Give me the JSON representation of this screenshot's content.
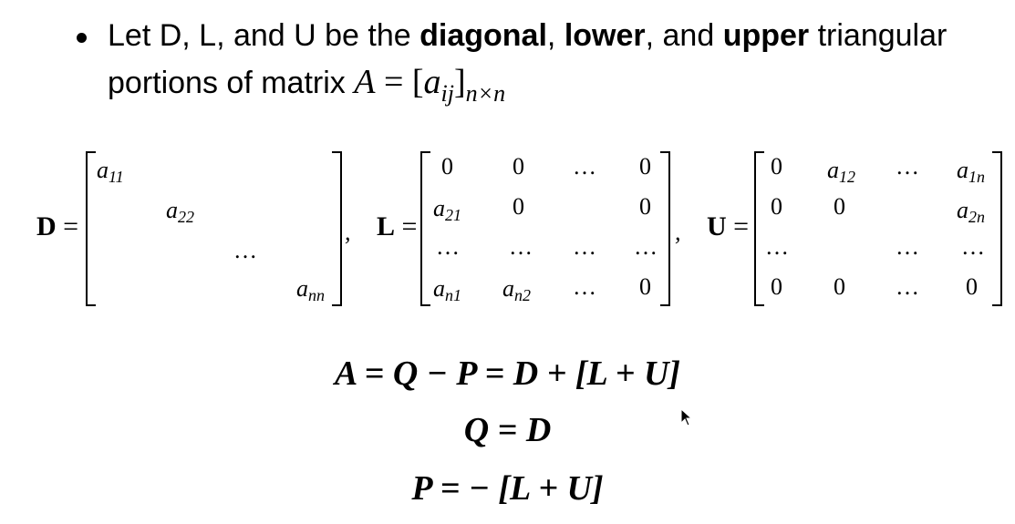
{
  "bullet": {
    "t1": "Let D, L, and U be the ",
    "b1": "diagonal",
    "t2": ", ",
    "b2": "lower",
    "t3": ", and ",
    "b3": "upper",
    "t4": " triangular",
    "line2": "portions of matrix ",
    "math": {
      "A": "A",
      "eq": " = [",
      "a": "a",
      "ij": "ij",
      "close": "]",
      "nxn": "n×n"
    }
  },
  "matrices": {
    "D": {
      "label": "D",
      "eq": " =",
      "cells": {
        "a11": {
          "base": "a",
          "sub": "11"
        },
        "a22": {
          "base": "a",
          "sub": "22"
        },
        "dots": "…",
        "ann": {
          "base": "a",
          "sub": "nn"
        }
      }
    },
    "L": {
      "label": "L",
      "eq": " =",
      "cells": {
        "r1c1": "0",
        "r1c2": "0",
        "r1c3": "…",
        "r1c4": "0",
        "a21": {
          "base": "a",
          "sub": "21"
        },
        "r2c2": "0",
        "r2c4": "0",
        "r3c1": "…",
        "r3c2": "…",
        "r3c3": "…",
        "r3c4": "…",
        "an1": {
          "base": "a",
          "sub": "n1"
        },
        "an2": {
          "base": "a",
          "sub": "n2"
        },
        "r4c3": "…",
        "r4c4": "0"
      }
    },
    "U": {
      "label": "U",
      "eq": " =",
      "cells": {
        "r1c1": "0",
        "a12": {
          "base": "a",
          "sub": "12"
        },
        "r1c3": "…",
        "a1n": {
          "base": "a",
          "sub": "1n"
        },
        "r2c1": "0",
        "r2c2": "0",
        "a2n": {
          "base": "a",
          "sub": "2n"
        },
        "r3c1": "…",
        "r3c3": "…",
        "r3c4": "…",
        "r4c1": "0",
        "r4c2": "0",
        "r4c3": "…",
        "r4c4": "0"
      }
    },
    "comma": ","
  },
  "equations": {
    "eq1": "A = Q − P = D + [L + U]",
    "eq2": "Q = D",
    "eq3": "P = − [L + U]"
  }
}
